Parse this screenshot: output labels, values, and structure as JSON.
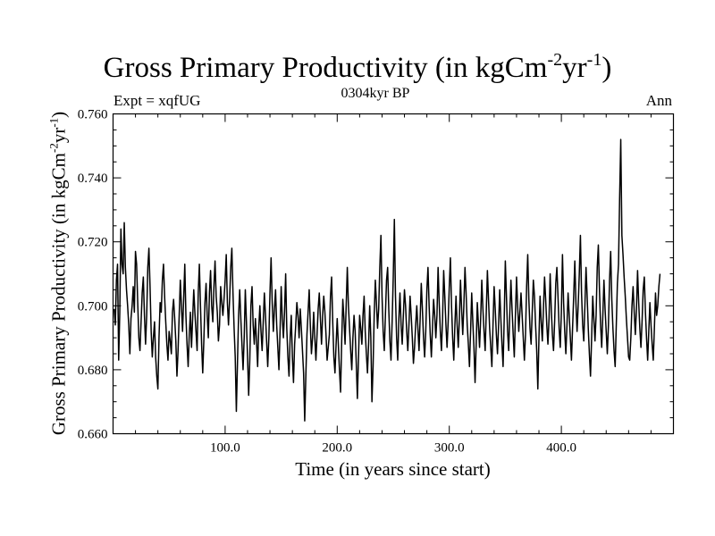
{
  "chart_data": {
    "type": "line",
    "title": {
      "main": "Gross Primary Productivity (in kgCm",
      "sup1": "-2",
      "mid": "yr",
      "sup2": "-1",
      "end": ")"
    },
    "subtitle_left": "Expt = xqfUG",
    "subtitle_center": "0304kyr BP",
    "subtitle_right": "Ann",
    "xlabel": "Time (in years since start)",
    "ylabel": {
      "main": "Gross Primary Productivity (in kgCm",
      "sup1": "-2",
      "mid": "yr",
      "sup2": "-1",
      "end": ")"
    },
    "xlim": [
      0,
      500
    ],
    "ylim": [
      0.66,
      0.76
    ],
    "x_ticks": [
      100,
      200,
      300,
      400
    ],
    "x_tick_labels": [
      "100.0",
      "200.0",
      "300.0",
      "400.0"
    ],
    "y_ticks": [
      0.66,
      0.68,
      0.7,
      0.72,
      0.74,
      0.76
    ],
    "y_tick_labels": [
      "0.660",
      "0.680",
      "0.700",
      "0.720",
      "0.740",
      "0.760"
    ],
    "x_start": 1,
    "x_step": 1,
    "series": [
      {
        "name": "Gross Primary Productivity",
        "color": "#000000",
        "values": [
          0.699,
          0.694,
          0.708,
          0.713,
          0.683,
          0.698,
          0.724,
          0.713,
          0.71,
          0.726,
          0.712,
          0.705,
          0.7,
          0.694,
          0.685,
          0.696,
          0.7,
          0.706,
          0.698,
          0.717,
          0.713,
          0.701,
          0.69,
          0.686,
          0.695,
          0.704,
          0.709,
          0.697,
          0.688,
          0.697,
          0.712,
          0.718,
          0.706,
          0.692,
          0.684,
          0.69,
          0.695,
          0.684,
          0.678,
          0.674,
          0.69,
          0.701,
          0.698,
          0.708,
          0.713,
          0.703,
          0.695,
          0.688,
          0.683,
          0.692,
          0.689,
          0.685,
          0.698,
          0.702,
          0.696,
          0.689,
          0.678,
          0.686,
          0.697,
          0.708,
          0.7,
          0.692,
          0.702,
          0.713,
          0.697,
          0.688,
          0.681,
          0.691,
          0.698,
          0.687,
          0.696,
          0.705,
          0.698,
          0.692,
          0.686,
          0.704,
          0.713,
          0.7,
          0.688,
          0.679,
          0.689,
          0.701,
          0.707,
          0.697,
          0.69,
          0.704,
          0.711,
          0.7,
          0.695,
          0.706,
          0.714,
          0.703,
          0.698,
          0.689,
          0.694,
          0.706,
          0.701,
          0.697,
          0.702,
          0.708,
          0.716,
          0.701,
          0.694,
          0.702,
          0.712,
          0.718,
          0.704,
          0.693,
          0.684,
          0.667,
          0.682,
          0.697,
          0.705,
          0.696,
          0.688,
          0.68,
          0.69,
          0.705,
          0.695,
          0.684,
          0.672,
          0.683,
          0.7,
          0.706,
          0.694,
          0.688,
          0.696,
          0.689,
          0.681,
          0.693,
          0.7,
          0.692,
          0.686,
          0.695,
          0.704,
          0.697,
          0.689,
          0.681,
          0.69,
          0.704,
          0.715,
          0.701,
          0.692,
          0.699,
          0.705,
          0.694,
          0.687,
          0.68,
          0.692,
          0.706,
          0.696,
          0.69,
          0.698,
          0.71,
          0.693,
          0.684,
          0.678,
          0.69,
          0.697,
          0.684,
          0.676,
          0.688,
          0.694,
          0.701,
          0.697,
          0.69,
          0.699,
          0.693,
          0.686,
          0.679,
          0.664,
          0.678,
          0.691,
          0.698,
          0.705,
          0.694,
          0.685,
          0.69,
          0.698,
          0.69,
          0.683,
          0.691,
          0.699,
          0.704,
          0.696,
          0.688,
          0.697,
          0.703,
          0.698,
          0.691,
          0.683,
          0.687,
          0.691,
          0.703,
          0.709,
          0.695,
          0.684,
          0.679,
          0.688,
          0.696,
          0.688,
          0.68,
          0.673,
          0.689,
          0.702,
          0.696,
          0.688,
          0.7,
          0.712,
          0.7,
          0.693,
          0.686,
          0.68,
          0.69,
          0.697,
          0.692,
          0.682,
          0.671,
          0.684,
          0.697,
          0.693,
          0.688,
          0.697,
          0.703,
          0.692,
          0.685,
          0.679,
          0.688,
          0.7,
          0.69,
          0.67,
          0.681,
          0.697,
          0.708,
          0.701,
          0.693,
          0.699,
          0.712,
          0.722,
          0.703,
          0.692,
          0.686,
          0.697,
          0.708,
          0.712,
          0.699,
          0.689,
          0.683,
          0.695,
          0.709,
          0.727,
          0.703,
          0.69,
          0.683,
          0.696,
          0.704,
          0.694,
          0.688,
          0.697,
          0.705,
          0.7,
          0.692,
          0.686,
          0.694,
          0.703,
          0.697,
          0.69,
          0.682,
          0.687,
          0.694,
          0.7,
          0.693,
          0.686,
          0.696,
          0.707,
          0.699,
          0.69,
          0.684,
          0.692,
          0.705,
          0.712,
          0.7,
          0.691,
          0.684,
          0.693,
          0.702,
          0.697,
          0.69,
          0.697,
          0.712,
          0.701,
          0.692,
          0.686,
          0.696,
          0.711,
          0.703,
          0.694,
          0.687,
          0.695,
          0.706,
          0.715,
          0.7,
          0.69,
          0.683,
          0.694,
          0.703,
          0.694,
          0.687,
          0.696,
          0.708,
          0.699,
          0.691,
          0.7,
          0.712,
          0.704,
          0.694,
          0.688,
          0.681,
          0.692,
          0.704,
          0.695,
          0.687,
          0.676,
          0.688,
          0.701,
          0.694,
          0.687,
          0.696,
          0.708,
          0.699,
          0.692,
          0.686,
          0.698,
          0.711,
          0.702,
          0.693,
          0.687,
          0.681,
          0.694,
          0.706,
          0.699,
          0.691,
          0.685,
          0.694,
          0.705,
          0.696,
          0.688,
          0.681,
          0.696,
          0.714,
          0.703,
          0.692,
          0.686,
          0.698,
          0.708,
          0.699,
          0.691,
          0.684,
          0.697,
          0.709,
          0.7,
          0.692,
          0.698,
          0.704,
          0.697,
          0.69,
          0.683,
          0.691,
          0.706,
          0.716,
          0.702,
          0.693,
          0.688,
          0.698,
          0.708,
          0.703,
          0.694,
          0.686,
          0.674,
          0.69,
          0.703,
          0.695,
          0.689,
          0.699,
          0.709,
          0.702,
          0.694,
          0.688,
          0.696,
          0.71,
          0.699,
          0.691,
          0.686,
          0.695,
          0.707,
          0.712,
          0.703,
          0.693,
          0.687,
          0.698,
          0.716,
          0.701,
          0.692,
          0.685,
          0.694,
          0.704,
          0.697,
          0.69,
          0.683,
          0.693,
          0.703,
          0.714,
          0.701,
          0.692,
          0.7,
          0.71,
          0.722,
          0.704,
          0.694,
          0.689,
          0.7,
          0.712,
          0.703,
          0.693,
          0.685,
          0.678,
          0.69,
          0.703,
          0.696,
          0.689,
          0.697,
          0.712,
          0.719,
          0.705,
          0.694,
          0.687,
          0.697,
          0.708,
          0.699,
          0.692,
          0.685,
          0.694,
          0.708,
          0.717,
          0.702,
          0.693,
          0.686,
          0.681,
          0.694,
          0.707,
          0.713,
          0.734,
          0.752,
          0.722,
          0.716,
          0.709,
          0.703,
          0.696,
          0.69,
          0.684,
          0.683,
          0.69,
          0.7,
          0.706,
          0.698,
          0.691,
          0.699,
          0.711,
          0.701,
          0.693,
          0.687,
          0.695,
          0.705,
          0.709,
          0.698,
          0.69,
          0.683,
          0.692,
          0.701,
          0.694,
          0.688,
          0.683,
          0.693,
          0.704,
          0.697,
          0.7,
          0.706,
          0.71
        ]
      }
    ]
  }
}
